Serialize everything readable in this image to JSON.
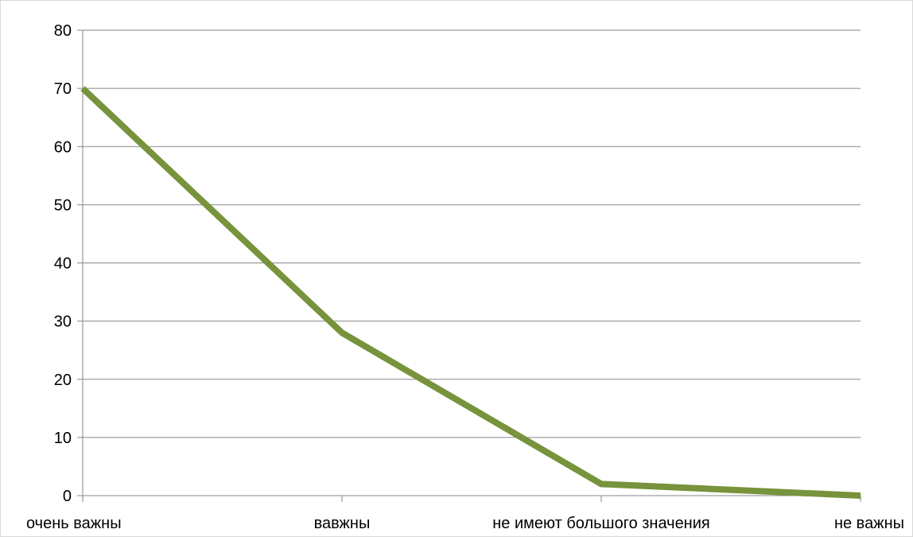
{
  "chart_data": {
    "type": "line",
    "categories": [
      "очень важны",
      "вавжны",
      "не имеют большого значения",
      "не важны"
    ],
    "series": [
      {
        "values": [
          70,
          28,
          2,
          0
        ]
      }
    ],
    "yticks": [
      "0",
      "10",
      "20",
      "30",
      "40",
      "50",
      "60",
      "70",
      "80"
    ],
    "ylim": [
      0,
      80
    ],
    "grid": true,
    "legend": "none",
    "title": "",
    "xlabel": "",
    "ylabel": ""
  },
  "colors": {
    "series_line": "#77933c",
    "gridline": "#868686",
    "axis": "#868686",
    "text": "#000000"
  }
}
